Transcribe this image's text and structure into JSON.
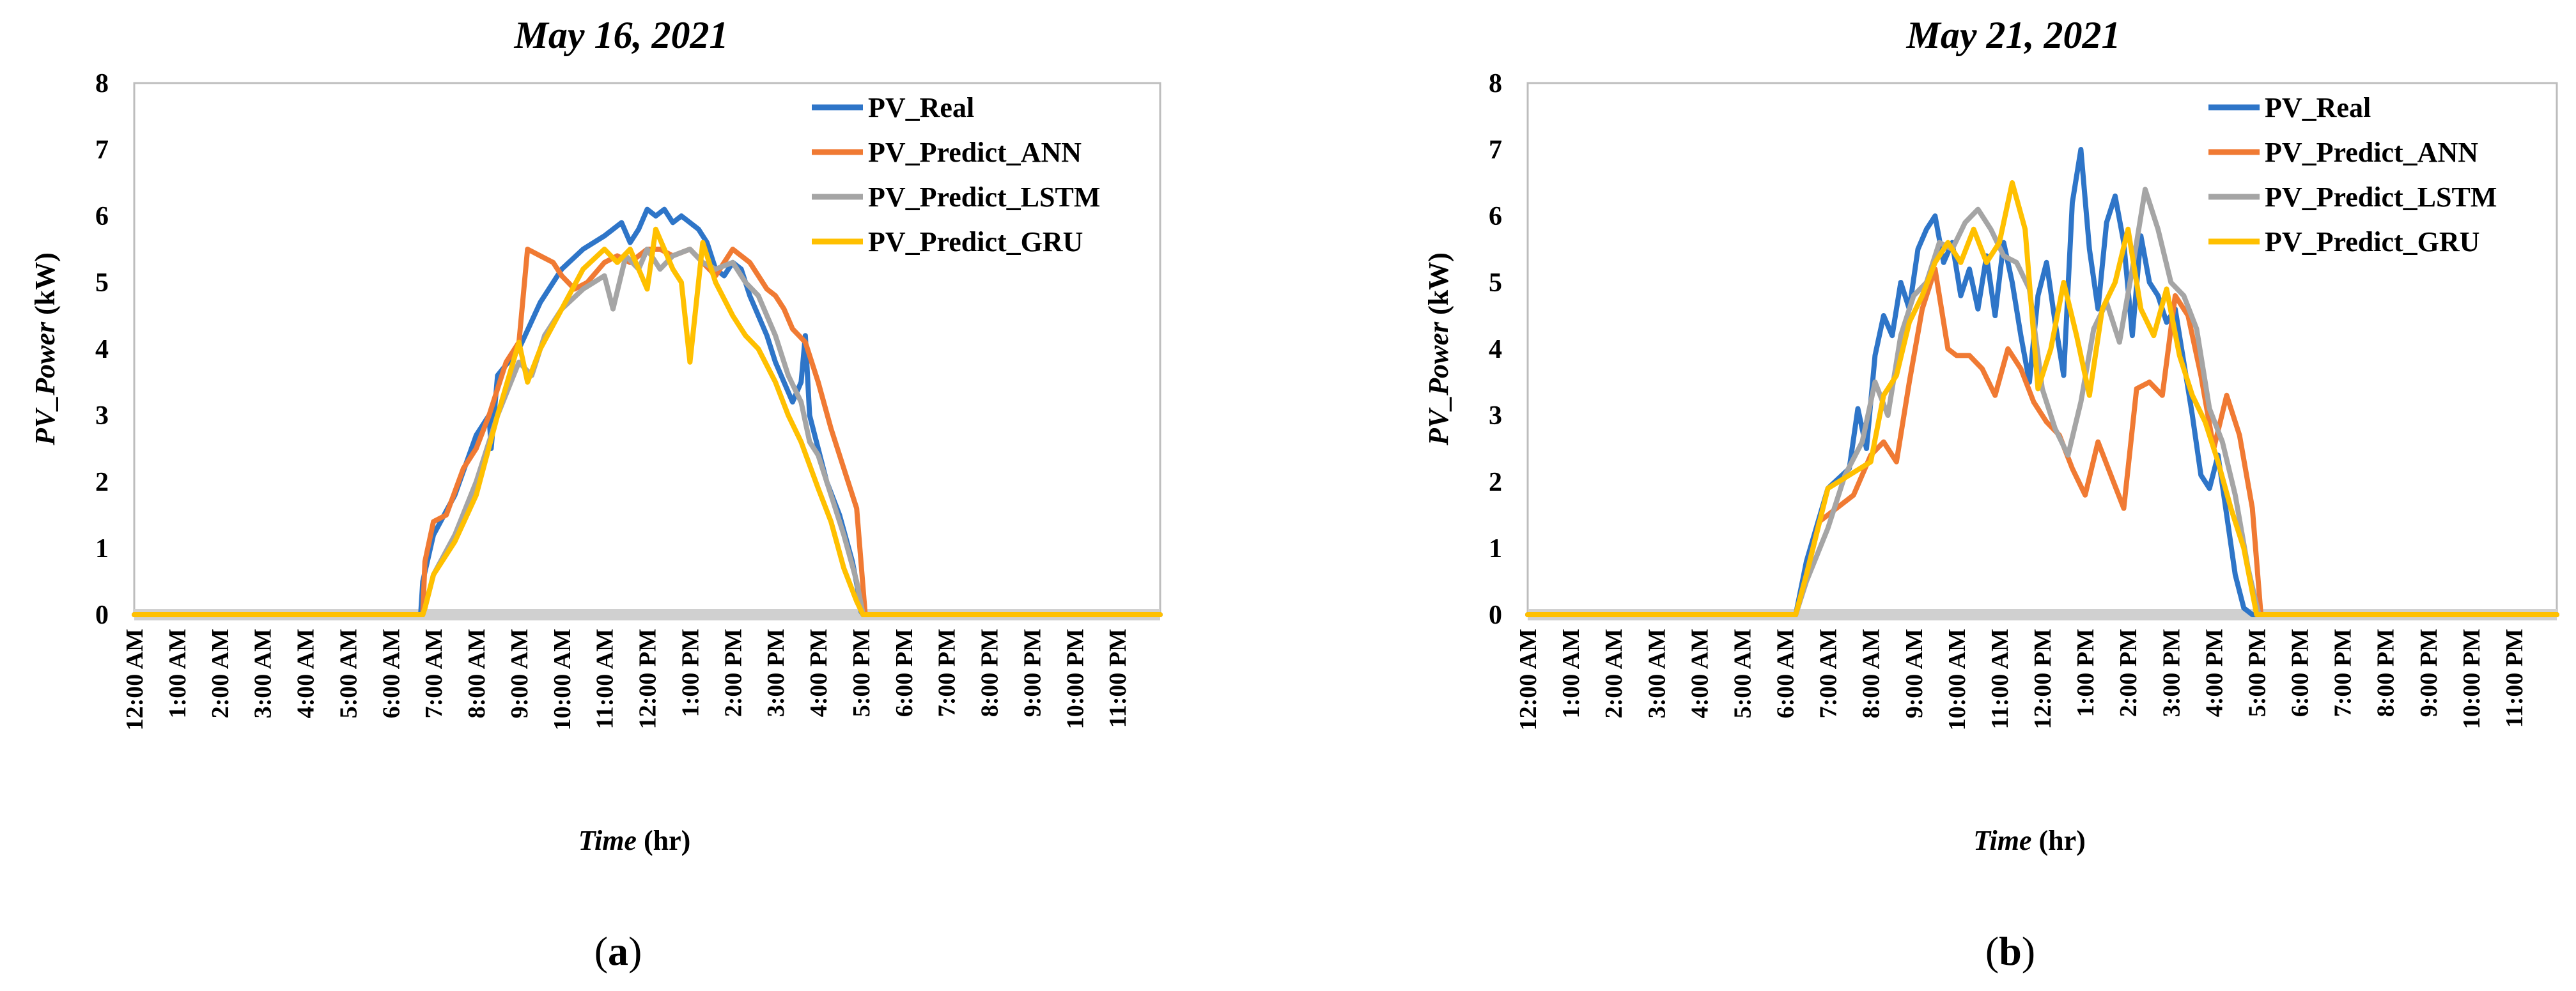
{
  "chart_data": [
    {
      "type": "line",
      "title": "May 16, 2021",
      "panel_label": {
        "open": "(",
        "letter": "a",
        "close": ")"
      },
      "ylabel": {
        "italic": "PV_Power",
        "unit": " (kW)"
      },
      "xlabel": {
        "italic": "Time",
        "unit": " (hr)"
      },
      "ylim": [
        0,
        8
      ],
      "yticks": [
        "0",
        "1",
        "2",
        "3",
        "4",
        "5",
        "6",
        "7",
        "8"
      ],
      "xlim": [
        0,
        24
      ],
      "xtick_labels": [
        "12:00 AM",
        "1:00 AM",
        "2:00 AM",
        "3:00 AM",
        "4:00 AM",
        "5:00 AM",
        "6:00 AM",
        "7:00 AM",
        "8:00 AM",
        "9:00 AM",
        "10:00 AM",
        "11:00 AM",
        "12:00 PM",
        "1:00 PM",
        "2:00 PM",
        "3:00 PM",
        "4:00 PM",
        "5:00 PM",
        "6:00 PM",
        "7:00 PM",
        "8:00 PM",
        "9:00 PM",
        "10:00 PM",
        "11:00 PM"
      ],
      "legend": "top-right",
      "series": [
        {
          "name": "PV_Real",
          "color": "#2E75C8",
          "x": [
            0,
            6.7,
            6.75,
            7.0,
            7.5,
            8.0,
            8.3,
            8.35,
            8.5,
            9.0,
            9.5,
            10.0,
            10.5,
            11.0,
            11.2,
            11.4,
            11.6,
            11.8,
            12.0,
            12.2,
            12.4,
            12.6,
            12.8,
            13.0,
            13.2,
            13.4,
            13.6,
            13.8,
            14.0,
            14.2,
            14.4,
            14.6,
            14.8,
            15.0,
            15.2,
            15.4,
            15.6,
            15.7,
            15.8,
            16.0,
            16.2,
            16.5,
            16.8,
            16.95,
            17.0,
            17.05,
            24
          ],
          "y": [
            0,
            0,
            0.5,
            1.2,
            1.8,
            2.7,
            3.0,
            2.5,
            3.6,
            4.0,
            4.7,
            5.2,
            5.5,
            5.7,
            5.8,
            5.9,
            5.6,
            5.8,
            6.1,
            6.0,
            6.1,
            5.9,
            6.0,
            5.9,
            5.8,
            5.6,
            5.2,
            5.1,
            5.3,
            5.2,
            4.8,
            4.5,
            4.2,
            3.8,
            3.5,
            3.2,
            3.5,
            4.2,
            3.0,
            2.5,
            2.0,
            1.5,
            0.8,
            0.3,
            0.05,
            0,
            0
          ]
        },
        {
          "name": "PV_Predict_ANN",
          "color": "#F07A33",
          "x": [
            0,
            6.75,
            6.8,
            7.0,
            7.3,
            7.7,
            8.0,
            8.3,
            8.7,
            9.0,
            9.2,
            9.5,
            9.8,
            10.0,
            10.3,
            10.6,
            11.0,
            11.3,
            11.6,
            12.0,
            12.3,
            12.6,
            13.0,
            13.3,
            13.6,
            14.0,
            14.2,
            14.4,
            14.6,
            14.8,
            15.0,
            15.2,
            15.4,
            15.7,
            16.0,
            16.3,
            16.6,
            16.9,
            17.1,
            24
          ],
          "y": [
            0,
            0,
            0.8,
            1.4,
            1.5,
            2.2,
            2.5,
            3.0,
            3.8,
            4.1,
            5.5,
            5.4,
            5.3,
            5.1,
            4.9,
            5.0,
            5.3,
            5.4,
            5.3,
            5.5,
            5.5,
            5.4,
            5.5,
            5.3,
            5.1,
            5.5,
            5.4,
            5.3,
            5.1,
            4.9,
            4.8,
            4.6,
            4.3,
            4.1,
            3.5,
            2.8,
            2.2,
            1.6,
            0,
            0
          ]
        },
        {
          "name": "PV_Predict_LSTM",
          "color": "#A5A5A5",
          "x": [
            0,
            6.75,
            6.8,
            7.0,
            7.5,
            8.0,
            8.5,
            9.0,
            9.3,
            9.6,
            10.0,
            10.5,
            11.0,
            11.2,
            11.5,
            11.8,
            12.0,
            12.3,
            12.6,
            13.0,
            13.3,
            13.6,
            14.0,
            14.3,
            14.6,
            15.0,
            15.3,
            15.6,
            15.8,
            16.0,
            16.3,
            16.6,
            16.9,
            17.05,
            24
          ],
          "y": [
            0,
            0,
            0.1,
            0.6,
            1.2,
            2.0,
            3.0,
            3.8,
            3.6,
            4.2,
            4.6,
            4.9,
            5.1,
            4.6,
            5.4,
            5.2,
            5.5,
            5.2,
            5.4,
            5.5,
            5.3,
            5.2,
            5.3,
            5.0,
            4.8,
            4.2,
            3.6,
            3.2,
            2.6,
            2.4,
            1.8,
            1.2,
            0.5,
            0,
            0
          ]
        },
        {
          "name": "PV_Predict_GRU",
          "color": "#FFC000",
          "x": [
            0,
            6.75,
            6.8,
            7.0,
            7.5,
            8.0,
            8.5,
            9.0,
            9.2,
            9.5,
            10.0,
            10.5,
            11.0,
            11.3,
            11.6,
            12.0,
            12.2,
            12.4,
            12.6,
            12.8,
            13.0,
            13.1,
            13.3,
            13.6,
            14.0,
            14.3,
            14.6,
            15.0,
            15.3,
            15.6,
            16.0,
            16.3,
            16.6,
            16.9,
            17.05,
            24
          ],
          "y": [
            0,
            0,
            0.1,
            0.6,
            1.1,
            1.8,
            3.0,
            4.1,
            3.5,
            4.0,
            4.6,
            5.2,
            5.5,
            5.3,
            5.5,
            4.9,
            5.8,
            5.5,
            5.2,
            5.0,
            3.8,
            4.4,
            5.6,
            5.0,
            4.5,
            4.2,
            4.0,
            3.5,
            3.0,
            2.6,
            1.9,
            1.4,
            0.7,
            0.2,
            0,
            0
          ]
        }
      ]
    },
    {
      "type": "line",
      "title": "May 21, 2021",
      "panel_label": {
        "open": "(",
        "letter": "b",
        "close": ")"
      },
      "ylabel": {
        "italic": "PV_Power",
        "unit": " (kW)"
      },
      "xlabel": {
        "italic": "Time",
        "unit": " (hr)"
      },
      "ylim": [
        0,
        8
      ],
      "yticks": [
        "0",
        "1",
        "2",
        "3",
        "4",
        "5",
        "6",
        "7",
        "8"
      ],
      "xlim": [
        0,
        24
      ],
      "xtick_labels": [
        "12:00 AM",
        "1:00 AM",
        "2:00 AM",
        "3:00 AM",
        "4:00 AM",
        "5:00 AM",
        "6:00 AM",
        "7:00 AM",
        "8:00 AM",
        "9:00 AM",
        "10:00 AM",
        "11:00 AM",
        "12:00 PM",
        "1:00 PM",
        "2:00 PM",
        "3:00 PM",
        "4:00 PM",
        "5:00 PM",
        "6:00 PM",
        "7:00 PM",
        "8:00 PM",
        "9:00 PM",
        "10:00 PM",
        "11:00 PM"
      ],
      "legend": "top-right",
      "series": [
        {
          "name": "PV_Real",
          "color": "#2E75C8",
          "x": [
            0,
            6.25,
            6.5,
            7.0,
            7.5,
            7.7,
            7.9,
            8.1,
            8.3,
            8.5,
            8.7,
            8.9,
            9.1,
            9.3,
            9.5,
            9.7,
            9.9,
            10.1,
            10.3,
            10.5,
            10.7,
            10.9,
            11.1,
            11.3,
            11.5,
            11.7,
            11.9,
            12.1,
            12.3,
            12.5,
            12.7,
            12.9,
            13.1,
            13.3,
            13.5,
            13.7,
            13.9,
            14.1,
            14.3,
            14.5,
            14.7,
            14.9,
            15.1,
            15.3,
            15.5,
            15.7,
            15.9,
            16.1,
            16.3,
            16.5,
            16.7,
            16.9,
            17.0,
            24
          ],
          "y": [
            0,
            0,
            0.8,
            1.9,
            2.2,
            3.1,
            2.5,
            3.9,
            4.5,
            4.2,
            5.0,
            4.6,
            5.5,
            5.8,
            6.0,
            5.3,
            5.6,
            4.8,
            5.2,
            4.6,
            5.4,
            4.5,
            5.6,
            5.0,
            4.2,
            3.5,
            4.8,
            5.3,
            4.4,
            3.6,
            6.2,
            7.0,
            5.5,
            4.6,
            5.9,
            6.3,
            5.6,
            4.2,
            5.7,
            5.0,
            4.8,
            4.4,
            4.6,
            3.8,
            3.0,
            2.1,
            1.9,
            2.4,
            1.5,
            0.6,
            0.1,
            0,
            0,
            0
          ]
        },
        {
          "name": "PV_Predict_ANN",
          "color": "#F07A33",
          "x": [
            0,
            6.25,
            6.5,
            6.8,
            7.2,
            7.6,
            8.0,
            8.3,
            8.6,
            8.9,
            9.2,
            9.5,
            9.8,
            10.0,
            10.3,
            10.6,
            10.9,
            11.2,
            11.5,
            11.8,
            12.1,
            12.4,
            12.7,
            13.0,
            13.3,
            13.6,
            13.9,
            14.2,
            14.5,
            14.8,
            15.1,
            15.4,
            15.7,
            16.0,
            16.3,
            16.6,
            16.9,
            17.1,
            24
          ],
          "y": [
            0,
            0,
            0.6,
            1.4,
            1.6,
            1.8,
            2.4,
            2.6,
            2.3,
            3.5,
            4.6,
            5.2,
            4.0,
            3.9,
            3.9,
            3.7,
            3.3,
            4.0,
            3.7,
            3.2,
            2.9,
            2.7,
            2.2,
            1.8,
            2.6,
            2.1,
            1.6,
            3.4,
            3.5,
            3.3,
            4.8,
            4.5,
            3.6,
            2.5,
            3.3,
            2.7,
            1.6,
            0,
            0
          ]
        },
        {
          "name": "PV_Predict_LSTM",
          "color": "#A5A5A5",
          "x": [
            0,
            6.25,
            6.5,
            7.0,
            7.4,
            7.8,
            8.1,
            8.4,
            8.7,
            9.0,
            9.3,
            9.6,
            9.9,
            10.2,
            10.5,
            10.8,
            11.1,
            11.4,
            11.7,
            12.0,
            12.3,
            12.6,
            12.9,
            13.2,
            13.5,
            13.8,
            14.1,
            14.4,
            14.7,
            15.0,
            15.3,
            15.6,
            15.9,
            16.2,
            16.5,
            16.8,
            17.05,
            24
          ],
          "y": [
            0,
            0,
            0.5,
            1.3,
            2.1,
            2.6,
            3.5,
            3.0,
            4.2,
            4.8,
            5.0,
            5.6,
            5.5,
            5.9,
            6.1,
            5.8,
            5.4,
            5.3,
            4.9,
            3.4,
            2.8,
            2.4,
            3.2,
            4.3,
            4.7,
            4.1,
            5.2,
            6.4,
            5.8,
            5.0,
            4.8,
            4.3,
            3.1,
            2.6,
            1.8,
            0.7,
            0,
            0
          ]
        },
        {
          "name": "PV_Predict_GRU",
          "color": "#FFC000",
          "x": [
            0,
            6.25,
            6.5,
            7.0,
            7.5,
            8.0,
            8.3,
            8.6,
            8.9,
            9.2,
            9.5,
            9.8,
            10.1,
            10.4,
            10.7,
            11.0,
            11.3,
            11.6,
            11.9,
            12.2,
            12.5,
            12.8,
            13.1,
            13.4,
            13.7,
            14.0,
            14.3,
            14.6,
            14.9,
            15.2,
            15.5,
            15.8,
            16.1,
            16.4,
            16.7,
            17.0,
            24
          ],
          "y": [
            0,
            0,
            0.6,
            1.9,
            2.1,
            2.3,
            3.3,
            3.6,
            4.4,
            4.8,
            5.3,
            5.6,
            5.3,
            5.8,
            5.3,
            5.6,
            6.5,
            5.8,
            3.4,
            4.0,
            5.0,
            4.2,
            3.3,
            4.6,
            5.0,
            5.8,
            4.6,
            4.2,
            4.9,
            3.9,
            3.3,
            2.9,
            2.3,
            1.6,
            1.0,
            0,
            0
          ]
        }
      ]
    }
  ]
}
